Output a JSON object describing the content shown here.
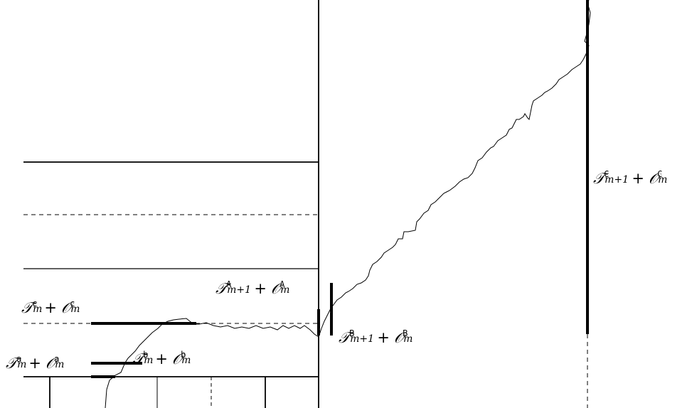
{
  "labels": {
    "a": {
      "calT": "𝒯",
      "calO": "𝒪",
      "sup": "a",
      "sub": "m",
      "plus": "+"
    },
    "b": {
      "calT": "𝒯",
      "calO": "𝒪",
      "sup": "b",
      "sub": "m",
      "plus": "+"
    },
    "c": {
      "calT": "𝒯",
      "calO": "𝒪",
      "sup": "c",
      "sub": "m",
      "plus": "+"
    },
    "A": {
      "calT": "𝒯",
      "calO": "𝒪",
      "sup": "A",
      "subT": "m+1",
      "subO": "m",
      "plus": "+"
    },
    "B": {
      "calT": "𝒯",
      "calO": "𝒪",
      "sup": "B",
      "subT": "m+1",
      "subO": "m",
      "plus": "+"
    },
    "C": {
      "calT": "𝒯",
      "calO": "𝒪",
      "sup": "C",
      "subT": "m+1",
      "subO": "m",
      "plus": "+"
    }
  },
  "colors": {
    "ink": "#000000",
    "background": "#ffffff"
  }
}
